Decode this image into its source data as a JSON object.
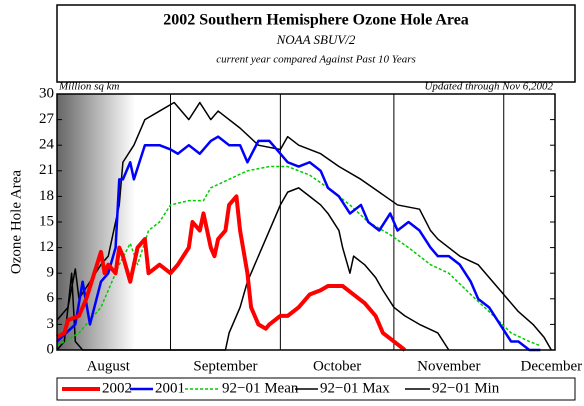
{
  "chart_data": {
    "type": "line",
    "title": "2002 Southern Hemisphere Ozone Hole Area",
    "subtitle": "NOAA SBUV/2",
    "subtitle2": "current year compared Against Past 10 Years",
    "unit_label": "Million sq km",
    "update_label": "Updated through Nov 6,2002",
    "y_label": "Ozone Hole Area",
    "xlim": [
      0,
      136
    ],
    "xticks": [
      {
        "value": 14,
        "label": "August"
      },
      {
        "value": 46,
        "label": "September"
      },
      {
        "value": 76.5,
        "label": "October"
      },
      {
        "value": 107,
        "label": "November"
      },
      {
        "value": 135,
        "label": "December"
      }
    ],
    "xgrid_lines": [
      31,
      61,
      92,
      122
    ],
    "ylim": [
      0,
      30
    ],
    "yticks": [
      0,
      3,
      6,
      9,
      12,
      15,
      18,
      21,
      24,
      27,
      30
    ],
    "series": [
      {
        "name": "2002",
        "color": "#ff0000",
        "width": 4,
        "style": "solid",
        "x": [
          0,
          2,
          3,
          6,
          8,
          12,
          13,
          14,
          16,
          17,
          18,
          20,
          21,
          22,
          24,
          25,
          28,
          31,
          33,
          36,
          37,
          39,
          40,
          42,
          43,
          44,
          46,
          47,
          49,
          50,
          52,
          53,
          55,
          57,
          58,
          61,
          63,
          66,
          69,
          72,
          74,
          78,
          81,
          84,
          87,
          89,
          92,
          95
        ],
        "values": [
          1.5,
          2,
          3.5,
          4,
          6,
          11.5,
          9,
          10,
          9,
          12,
          11,
          8,
          10,
          12,
          13,
          9,
          10,
          9,
          10,
          12,
          15,
          14,
          16,
          12,
          11,
          13,
          14,
          17,
          18,
          14,
          9,
          5,
          3,
          2.5,
          3,
          4,
          4,
          5,
          6.5,
          7,
          7.5,
          7.5,
          6.5,
          5.5,
          4,
          2,
          1,
          0
        ]
      },
      {
        "name": "2001",
        "color": "#0000ff",
        "width": 2.5,
        "style": "solid",
        "x": [
          0,
          5,
          7,
          9,
          12,
          14,
          16,
          17,
          18,
          20,
          21,
          24,
          28,
          31,
          33,
          36,
          39,
          42,
          44,
          47,
          50,
          52,
          55,
          58,
          61,
          63,
          66,
          69,
          72,
          74,
          77,
          80,
          83,
          85,
          88,
          91,
          93,
          96,
          99,
          102,
          104,
          107,
          110,
          113,
          115,
          118,
          121,
          124,
          126,
          129,
          132
        ],
        "values": [
          1,
          3,
          8,
          3,
          8,
          9,
          12,
          20,
          20,
          22,
          20,
          24,
          24,
          23.5,
          23,
          24,
          23,
          24.5,
          25,
          24,
          24,
          22,
          24.5,
          24.5,
          23,
          22,
          21.5,
          22,
          21,
          19,
          18,
          16,
          17,
          15,
          14,
          16,
          14,
          15,
          14,
          12,
          11,
          11,
          10,
          8,
          6,
          5,
          3,
          1,
          1,
          0,
          0
        ]
      },
      {
        "name": "92−01 Mean",
        "color": "#00cc00",
        "width": 1.5,
        "style": "dashed",
        "x": [
          0,
          6,
          12,
          17,
          20,
          22,
          25,
          28,
          31,
          36,
          40,
          42,
          47,
          52,
          58,
          63,
          66,
          69,
          74,
          80,
          85,
          91,
          96,
          102,
          107,
          113,
          118,
          124,
          129,
          132
        ],
        "values": [
          0.5,
          2,
          5,
          10,
          12.5,
          10,
          14,
          15,
          17,
          17.5,
          17.5,
          19,
          20,
          21,
          21.5,
          21.5,
          21,
          20.5,
          19,
          17,
          15,
          13.5,
          12,
          10,
          9,
          6.5,
          4.5,
          2,
          1,
          0.5
        ]
      },
      {
        "name": "92−01 Max",
        "color": "#000000",
        "width": 1.5,
        "style": "solid",
        "x": [
          0,
          3,
          5,
          6,
          9,
          12,
          14,
          17,
          18,
          21,
          24,
          28,
          32,
          36,
          39,
          42,
          44,
          50,
          55,
          61,
          63,
          66,
          72,
          77,
          83,
          88,
          93,
          99,
          102,
          104,
          110,
          115,
          121,
          126,
          130,
          133,
          135
        ],
        "values": [
          3.5,
          5,
          9.5,
          6,
          8,
          10,
          11,
          17,
          22,
          24,
          27,
          28,
          29,
          27,
          29,
          27,
          28,
          26,
          24,
          23.5,
          25,
          24,
          23,
          21.5,
          20,
          18.5,
          17,
          16.5,
          14,
          13,
          11,
          10,
          7,
          4.5,
          3,
          1.5,
          0
        ]
      },
      {
        "name": "92−01 Min",
        "color": "#000000",
        "width": 1.5,
        "style": "solid",
        "x": [
          0,
          2,
          4,
          5,
          7,
          46,
          47,
          50,
          52,
          55,
          58,
          61,
          63,
          66,
          69,
          72,
          74,
          77,
          78,
          80,
          81,
          84,
          87,
          89,
          92,
          95,
          99,
          104,
          107
        ],
        "values": [
          0,
          1,
          9,
          1,
          0,
          0,
          2,
          5,
          8,
          11,
          14,
          17,
          18.5,
          19,
          18,
          17,
          16,
          14,
          12,
          9,
          11,
          10,
          8.5,
          7,
          5,
          4,
          3,
          2,
          0
        ]
      }
    ]
  }
}
